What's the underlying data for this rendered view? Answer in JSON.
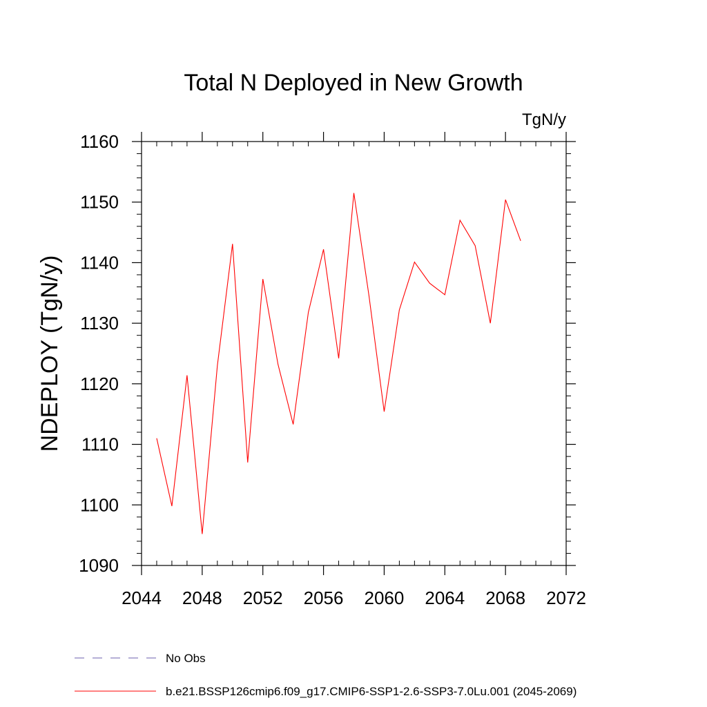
{
  "chart_data": {
    "type": "line",
    "title": "Total N Deployed in New Growth",
    "units_label": "TgN/y",
    "ylabel": "NDEPLOY  (TgN/y)",
    "xlabel": "",
    "xlim": [
      2044,
      2072
    ],
    "ylim": [
      1090,
      1160
    ],
    "x_ticks": [
      2044,
      2048,
      2052,
      2056,
      2060,
      2064,
      2068,
      2072
    ],
    "y_ticks": [
      1090,
      1100,
      1110,
      1120,
      1130,
      1140,
      1150,
      1160
    ],
    "x_minor_step": 1,
    "y_minor_step": 2,
    "grid": false,
    "legend_position": "bottom-left",
    "series": [
      {
        "name": "No Obs",
        "color": "#6b5fae",
        "dash": "dashed",
        "x": [],
        "values": []
      },
      {
        "name": "b.e21.BSSP126cmip6.f09_g17.CMIP6-SSP1-2.6-SSP3-7.0Lu.001 (2045-2069)",
        "color": "#ff0000",
        "dash": "solid",
        "x": [
          2045,
          2046,
          2047,
          2048,
          2049,
          2050,
          2051,
          2052,
          2053,
          2054,
          2055,
          2056,
          2057,
          2058,
          2059,
          2060,
          2061,
          2062,
          2063,
          2064,
          2065,
          2066,
          2067,
          2068,
          2069
        ],
        "values": [
          1111.0,
          1099.8,
          1121.4,
          1095.2,
          1123.0,
          1143.1,
          1107.0,
          1137.3,
          1123.2,
          1113.3,
          1131.8,
          1142.2,
          1124.2,
          1151.5,
          1134.5,
          1115.4,
          1132.2,
          1140.1,
          1136.6,
          1134.7,
          1147.0,
          1142.8,
          1130.0,
          1150.4,
          1143.6
        ]
      }
    ]
  }
}
